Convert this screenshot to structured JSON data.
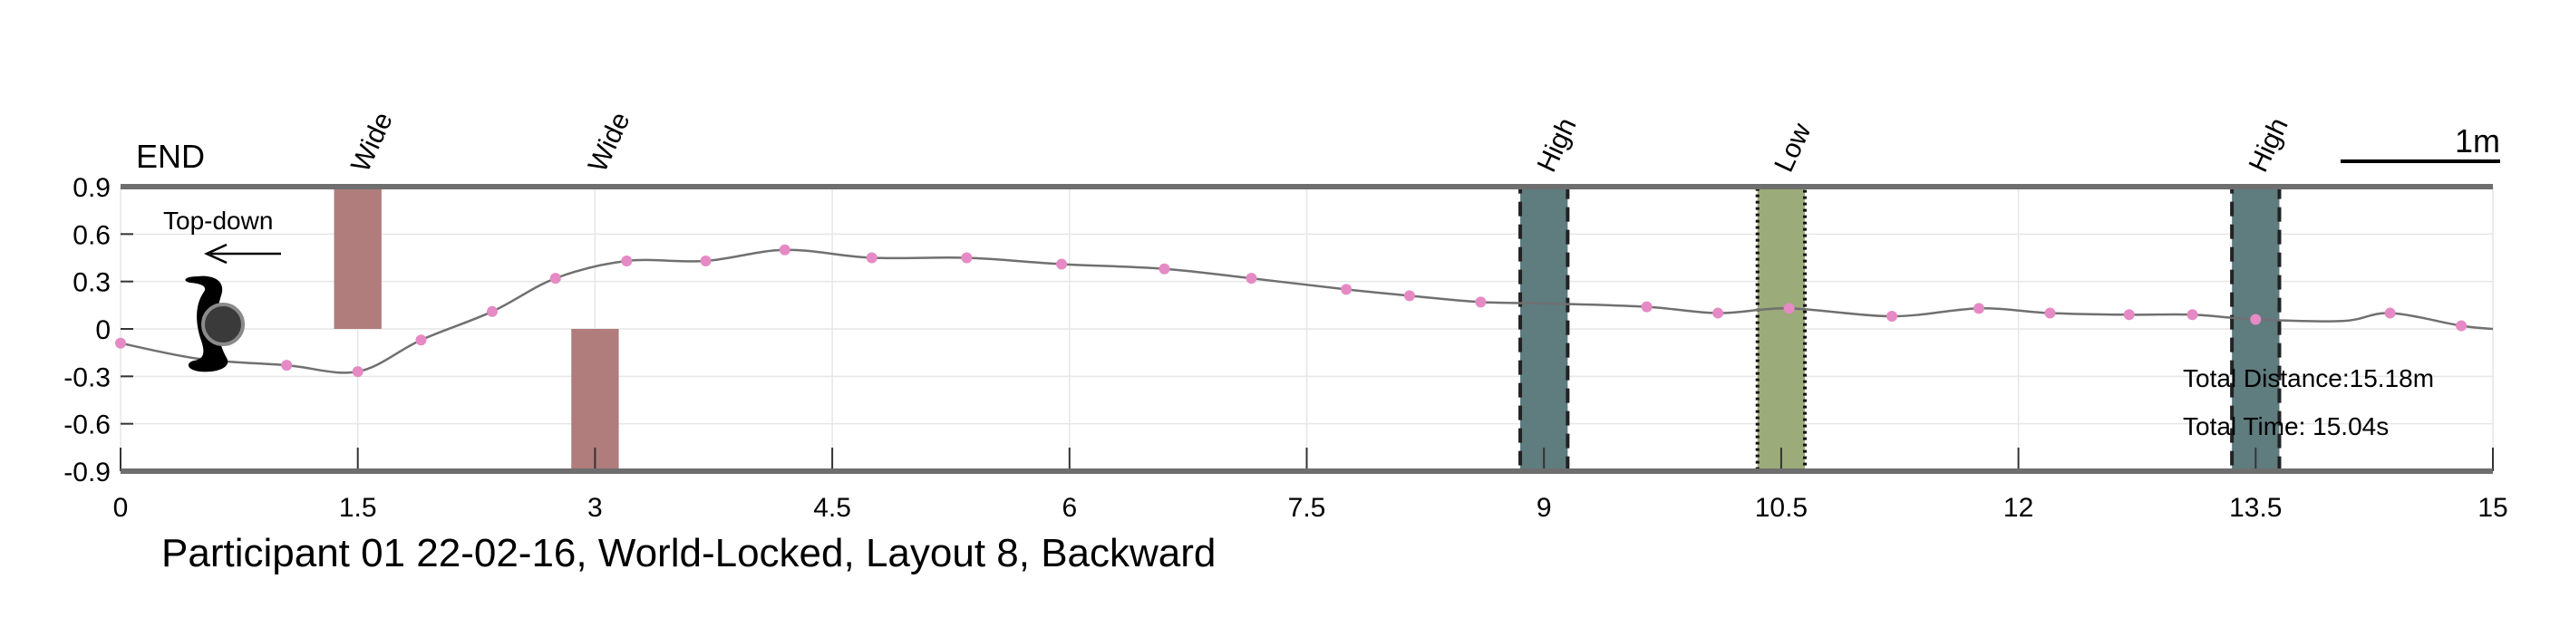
{
  "chart_data": {
    "type": "line",
    "title": "Participant 01 22-02-16, World-Locked, Layout 8, Backward",
    "xlim": [
      0,
      15
    ],
    "ylim": [
      -0.9,
      0.9
    ],
    "x_ticks": [
      "0",
      "1.5",
      "3",
      "4.5",
      "6",
      "7.5",
      "9",
      "10.5",
      "12",
      "13.5",
      "15"
    ],
    "y_ticks": [
      "0.9",
      "0.6",
      "0.3",
      "0",
      "-0.3",
      "-0.6",
      "-0.9"
    ],
    "grid": true,
    "end_label": "END",
    "view_label": "Top-down",
    "scale_bar_label": "1m",
    "scale_bar_length_m": 1,
    "stats": {
      "distance": "Total Distance:15.18m",
      "time": "Total Time: 15.04s"
    },
    "path": {
      "line_color": "#707070",
      "marker_color": "#e58ac4",
      "x": [
        0,
        0.5,
        1.05,
        1.5,
        1.9,
        2.35,
        2.75,
        3.2,
        3.7,
        4.2,
        4.75,
        5.35,
        5.95,
        6.6,
        7.15,
        7.75,
        8.15,
        8.6,
        9.05,
        9.65,
        10.1,
        10.55,
        11.2,
        11.75,
        12.2,
        12.7,
        13.1,
        13.5,
        14.05,
        14.35,
        14.8,
        15
      ],
      "y": [
        -0.09,
        -0.19,
        -0.23,
        -0.27,
        -0.07,
        0.11,
        0.32,
        0.43,
        0.43,
        0.5,
        0.45,
        0.45,
        0.41,
        0.38,
        0.32,
        0.25,
        0.21,
        0.17,
        0.16,
        0.14,
        0.1,
        0.13,
        0.08,
        0.13,
        0.1,
        0.09,
        0.09,
        0.06,
        0.05,
        0.1,
        0.02,
        0
      ],
      "markers_x": [
        0,
        1.05,
        1.5,
        1.9,
        2.35,
        2.75,
        3.2,
        3.7,
        4.2,
        4.75,
        5.35,
        5.95,
        6.6,
        7.15,
        7.75,
        8.15,
        8.6,
        9.65,
        10.1,
        10.55,
        11.2,
        11.75,
        12.2,
        12.7,
        13.1,
        13.5,
        14.35,
        14.8
      ],
      "markers_y": [
        -0.09,
        -0.23,
        -0.27,
        -0.07,
        0.11,
        0.32,
        0.43,
        0.43,
        0.5,
        0.45,
        0.45,
        0.41,
        0.38,
        0.32,
        0.25,
        0.21,
        0.17,
        0.14,
        0.1,
        0.13,
        0.08,
        0.13,
        0.1,
        0.09,
        0.09,
        0.06,
        0.1,
        0.02
      ]
    },
    "obstacles": [
      {
        "label": "Wide",
        "x0": 1.35,
        "x1": 1.65,
        "y0": 0,
        "y1": 0.9,
        "color": "#b07c7c",
        "border": "none",
        "label_x": 1.5
      },
      {
        "label": "Wide",
        "x0": 2.85,
        "x1": 3.15,
        "y0": -0.9,
        "y1": 0,
        "color": "#b07c7c",
        "border": "none",
        "label_x": 3.0
      },
      {
        "label": "High",
        "x0": 8.85,
        "x1": 9.15,
        "y0": -0.9,
        "y1": 0.9,
        "color": "#5f7c7f",
        "border": "dashed",
        "label_x": 9.0
      },
      {
        "label": "Low",
        "x0": 10.35,
        "x1": 10.65,
        "y0": -0.9,
        "y1": 0.9,
        "color": "#9bab7a",
        "border": "dotted",
        "label_x": 10.5
      },
      {
        "label": "High",
        "x0": 13.35,
        "x1": 13.65,
        "y0": -0.9,
        "y1": 0.9,
        "color": "#5f7c7f",
        "border": "dashed",
        "label_x": 13.5
      }
    ]
  }
}
